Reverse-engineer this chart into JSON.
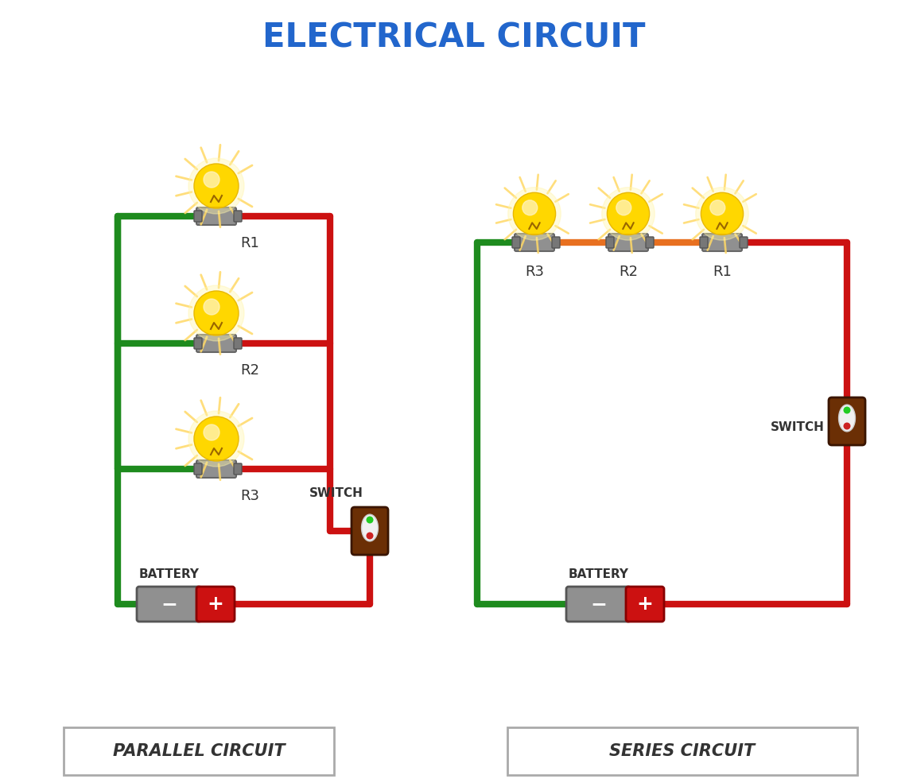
{
  "title": "ELECTRICAL CIRCUIT",
  "title_color": "#2266CC",
  "title_fontsize": 30,
  "bg_color": "#ffffff",
  "label1": "PARALLEL CIRCUIT",
  "label2": "SERIES CIRCUIT",
  "label_fontsize": 15,
  "wire_green": "#1E8B1E",
  "wire_red": "#CC1111",
  "wire_orange": "#E87020",
  "wire_lw": 6,
  "socket_color": "#909090",
  "battery_gray": "#909090",
  "battery_red": "#CC1111",
  "switch_brown": "#6B2F05",
  "note_color": "#444444"
}
